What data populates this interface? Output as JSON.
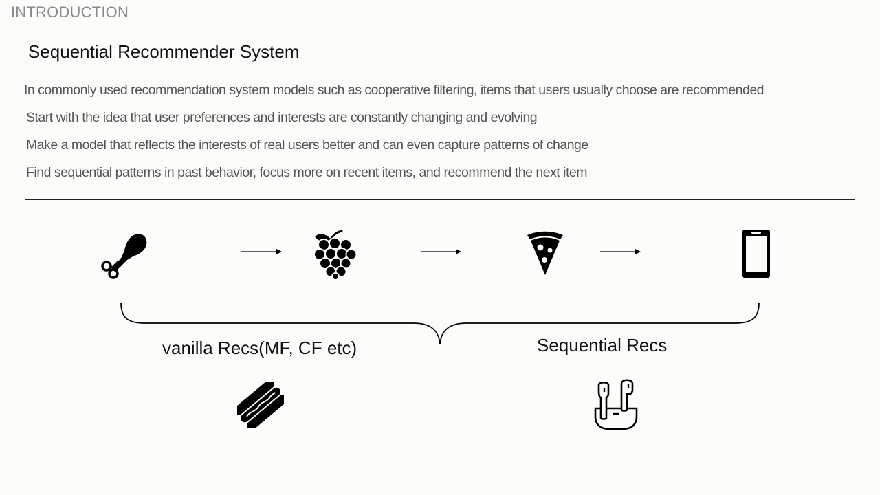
{
  "header": {
    "section_label": "INTRODUCTION",
    "title": "Sequential Recommender System"
  },
  "bullets": [
    "In commonly used recommendation system models such as cooperative filtering, items that users usually choose are recommended",
    "Start with the idea that user preferences and interests are constantly changing and evolving",
    "Make a model that reflects the interests of real users better and can even capture patterns of change",
    "Find sequential patterns in past behavior, focus more on recent items, and recommend the next item"
  ],
  "diagram": {
    "sequence_icons": [
      "chicken-leg-icon",
      "grapes-icon",
      "pizza-slice-icon",
      "smartphone-icon"
    ],
    "left_caption": "vanilla Recs(MF, CF etc)",
    "right_caption": "Sequential Recs",
    "left_recommendation_icon": "hotdog-icon",
    "right_recommendation_icon": "earbuds-icon"
  }
}
